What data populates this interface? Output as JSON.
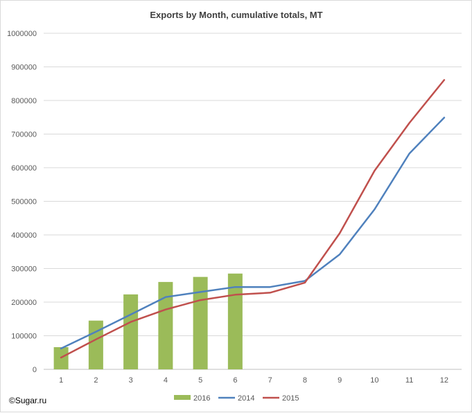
{
  "chart_data": {
    "type": "bar",
    "title": "Exports by Month, cumulative totals, MT",
    "categories": [
      "1",
      "2",
      "3",
      "4",
      "5",
      "6",
      "7",
      "8",
      "9",
      "10",
      "11",
      "12"
    ],
    "ylim": [
      0,
      1000000
    ],
    "y_ticks": [
      "0",
      "100000",
      "200000",
      "300000",
      "400000",
      "500000",
      "600000",
      "700000",
      "800000",
      "900000",
      "1000000"
    ],
    "grid": true,
    "legend_position": "bottom",
    "series": [
      {
        "name": "2016",
        "type": "bar",
        "color": "#9bbb59",
        "values": [
          66000,
          145000,
          223000,
          260000,
          275000,
          285000,
          null,
          null,
          null,
          null,
          null,
          null
        ]
      },
      {
        "name": "2014",
        "type": "line",
        "color": "#4f81bd",
        "values": [
          62000,
          112000,
          163000,
          215000,
          230000,
          245000,
          245000,
          263000,
          342000,
          476000,
          642000,
          749000
        ]
      },
      {
        "name": "2015",
        "type": "line",
        "color": "#c0504d",
        "values": [
          35000,
          89000,
          141000,
          178000,
          206000,
          222000,
          228000,
          258000,
          405000,
          591000,
          733000,
          861000
        ]
      }
    ]
  },
  "credit": "©Sugar.ru"
}
